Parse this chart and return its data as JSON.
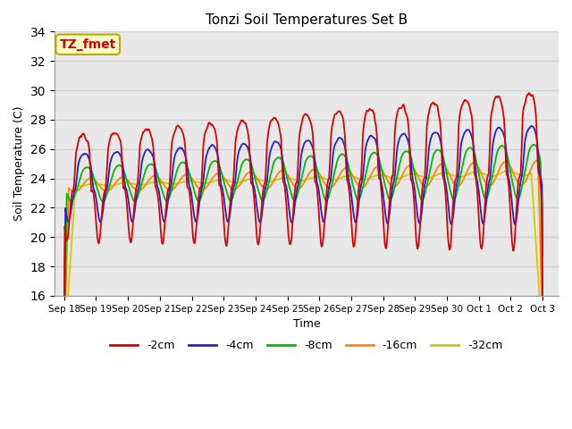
{
  "title": "Tonzi Soil Temperatures Set B",
  "xlabel": "Time",
  "ylabel": "Soil Temperature (C)",
  "ylim": [
    16,
    34
  ],
  "annotation_text": "TZ_fmet",
  "annotation_bg": "#ffffcc",
  "annotation_border": "#bbaa00",
  "annotation_text_color": "#cc0000",
  "grid_color": "#d0d0d0",
  "plot_bg_color": "#e8e8e8",
  "color_2cm": "#dd0000",
  "color_4cm": "#2222cc",
  "color_8cm": "#00bb00",
  "color_16cm": "#ff8800",
  "color_32cm": "#cccc00",
  "legend_labels": [
    "-2cm",
    "-4cm",
    "-8cm",
    "-16cm",
    "-32cm"
  ],
  "tick_labels": [
    "Sep 18",
    "Sep 19",
    "Sep 20",
    "Sep 21",
    "Sep 22",
    "Sep 23",
    "Sep 24",
    "Sep 25",
    "Sep 26",
    "Sep 27",
    "Sep 28",
    "Sep 29",
    "Sep 30",
    "Oct 1",
    "Oct 2",
    "Oct 3"
  ],
  "yticks": [
    16,
    18,
    20,
    22,
    24,
    26,
    28,
    30,
    32,
    34
  ],
  "n_days": 15,
  "pts_per_day": 48,
  "base_mean": 23.5,
  "trend": 0.06
}
